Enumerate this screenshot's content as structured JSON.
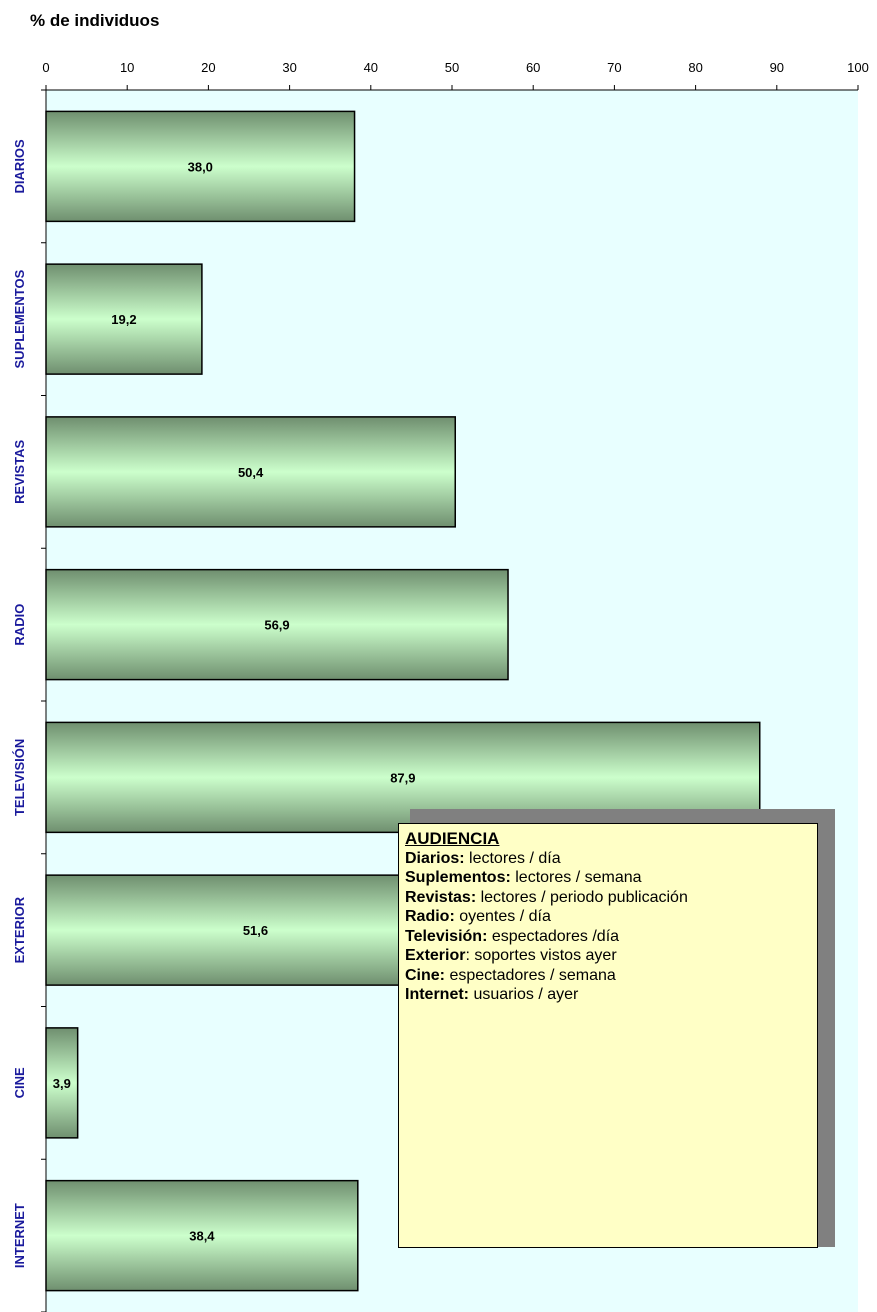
{
  "chart_data": {
    "type": "bar",
    "orientation": "horizontal",
    "title": "",
    "xlabel": "% de individuos",
    "ylabel": "",
    "xlim": [
      0,
      100
    ],
    "ticks": [
      "0",
      "10",
      "20",
      "30",
      "40",
      "50",
      "60",
      "70",
      "80",
      "90",
      "100"
    ],
    "categories": [
      "DIARIOS",
      "SUPLEMENTOS",
      "REVISTAS",
      "RADIO",
      "TELEVISIÓN",
      "EXTERIOR",
      "CINE",
      "INTERNET"
    ],
    "values": [
      38.0,
      19.2,
      50.4,
      56.9,
      87.9,
      51.6,
      3.9,
      38.4
    ],
    "value_labels": [
      "38,0",
      "19,2",
      "50,4",
      "56,9",
      "87,9",
      "51,6",
      "3,9",
      "38,4"
    ],
    "grid": false,
    "legend_position": "bottom-right",
    "colors": {
      "plot_background": "#e8ffff",
      "bar_light": "#ccffcc",
      "bar_dark": "#6f8f6f",
      "category_label": "#1a1a9c",
      "note_background": "#ffffc6",
      "note_shadow": "#808080"
    }
  },
  "note": {
    "title": "AUDIENCIA",
    "rows": [
      {
        "key": "Diarios:",
        "text": " lectores / día"
      },
      {
        "key": "Suplementos:",
        "text": " lectores / semana"
      },
      {
        "key": "Revistas:",
        "text": " lectores / periodo publicación"
      },
      {
        "key": "Radio:",
        "text": " oyentes / día"
      },
      {
        "key": "Televisión:",
        "text": " espectadores /día"
      },
      {
        "key": "Exterior",
        "text": ": soportes vistos ayer"
      },
      {
        "key": "Cine:",
        "text": " espectadores / semana"
      },
      {
        "key": "Internet:",
        "text": " usuarios / ayer"
      }
    ]
  }
}
